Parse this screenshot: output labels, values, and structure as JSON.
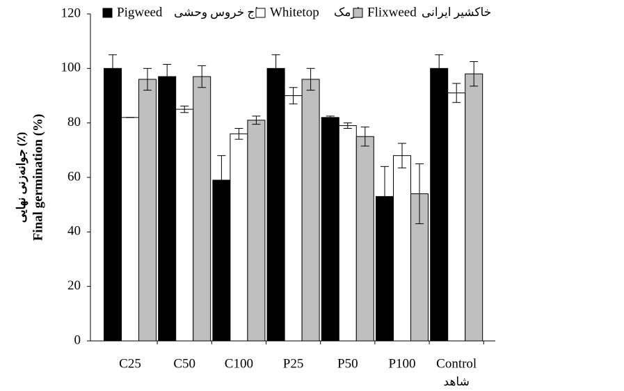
{
  "chart_data": {
    "type": "bar",
    "y_label": "Final germination (%)",
    "y_label_fa": "جوانه‌زنی نهایی (٪)",
    "categories": [
      "C25",
      "C50",
      "C100",
      "P25",
      "P50",
      "P100",
      "Control"
    ],
    "category_note": "شاهد",
    "series": [
      {
        "name": "Pigweed",
        "name_fa": "تاج خروس وحشی",
        "color": "#000000",
        "values": [
          100,
          97,
          59,
          100,
          82,
          53,
          100
        ],
        "errors": [
          5,
          4.5,
          9,
          5,
          0.5,
          11,
          5
        ]
      },
      {
        "name": "Whitetop",
        "name_fa": "ازمک",
        "color": "#ffffff",
        "values": [
          82,
          85,
          76,
          90,
          79,
          68,
          91
        ],
        "errors": [
          0,
          1.2,
          2,
          3,
          1,
          4.5,
          3.5
        ]
      },
      {
        "name": "Flixweed",
        "name_fa": "خاکشیر ایرانی",
        "color": "#bfbfbf",
        "values": [
          96,
          97,
          81,
          96,
          75,
          54,
          98
        ],
        "errors": [
          4,
          4,
          1.5,
          4,
          3.5,
          11,
          4.5
        ]
      }
    ],
    "ylim": [
      0,
      120
    ],
    "yticks": [
      0,
      20,
      40,
      60,
      80,
      100,
      120
    ]
  }
}
